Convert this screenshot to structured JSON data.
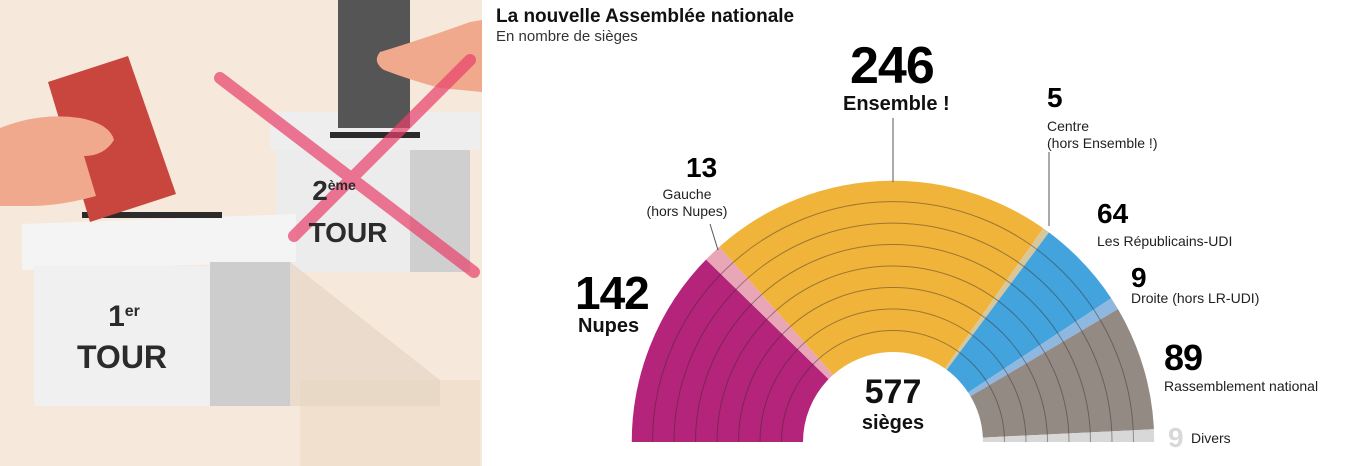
{
  "illustration": {
    "box1": {
      "line1": "1",
      "line1_sup": "er",
      "line2": "TOUR"
    },
    "box2": {
      "line1": "2",
      "line1_sup": "ème",
      "line2": "TOUR"
    }
  },
  "colors": {
    "nupes": "#b3247a",
    "gauche": "#e9a6b7",
    "ensemble": "#f0b43a",
    "centre": "#d7c79a",
    "lr": "#43a3dc",
    "droite": "#8fb8e0",
    "rn": "#948a84",
    "divers": "#d8d8d8"
  },
  "chart_data": {
    "type": "pie",
    "variant": "hemicycle",
    "title": "La nouvelle Assemblée nationale",
    "subtitle": "En nombre de sièges",
    "total": {
      "value": "577",
      "label": "sièges"
    },
    "categories": [
      "Nupes",
      "Gauche (hors Nupes)",
      "Ensemble !",
      "Centre (hors Ensemble !)",
      "Les Républicains-UDI",
      "Droite (hors LR-UDI)",
      "Rassemblement national",
      "Divers"
    ],
    "values": [
      142,
      13,
      246,
      5,
      64,
      9,
      89,
      9
    ],
    "segments": [
      {
        "value": "142",
        "name": "Nupes",
        "color_key": "nupes"
      },
      {
        "value": "13",
        "name": "Gauche",
        "name2": "(hors Nupes)",
        "color_key": "gauche"
      },
      {
        "value": "246",
        "name": "Ensemble !",
        "color_key": "ensemble"
      },
      {
        "value": "5",
        "name": "Centre",
        "name2": "(hors Ensemble !)",
        "color_key": "centre"
      },
      {
        "value": "64",
        "name": "Les Républicains-UDI",
        "color_key": "lr"
      },
      {
        "value": "9",
        "name": "Droite (hors LR-UDI)",
        "color_key": "droite"
      },
      {
        "value": "89",
        "name": "Rassemblement national",
        "color_key": "rn"
      },
      {
        "value": "9",
        "name": "Divers",
        "color_key": "divers"
      }
    ]
  }
}
